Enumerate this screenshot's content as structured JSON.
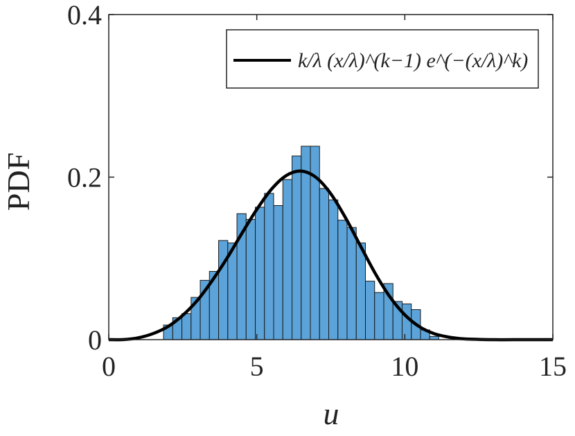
{
  "chart_data": {
    "type": "histogram",
    "xlabel": "u",
    "ylabel": "PDF",
    "xlim": [
      0,
      15
    ],
    "xticks": [
      0,
      5,
      10,
      15
    ],
    "ylim": [
      0,
      0.4
    ],
    "yticks": [
      0,
      0.2,
      0.4
    ],
    "color": "#5ba3d8",
    "bins": [
      1.85,
      2.16,
      2.47,
      2.78,
      3.09,
      3.4,
      3.71,
      4.02,
      4.33,
      4.64,
      4.95,
      5.26,
      5.57,
      5.88,
      6.19,
      6.5,
      6.81,
      7.12,
      7.43,
      7.74,
      8.05,
      8.36,
      8.67,
      8.98,
      9.29,
      9.6,
      9.91,
      10.22,
      10.53,
      10.84,
      11.15
    ],
    "values": [
      0.018,
      0.027,
      0.032,
      0.052,
      0.073,
      0.084,
      0.122,
      0.119,
      0.155,
      0.148,
      0.163,
      0.18,
      0.165,
      0.197,
      0.226,
      0.238,
      0.238,
      0.186,
      0.172,
      0.147,
      0.138,
      0.119,
      0.072,
      0.058,
      0.069,
      0.047,
      0.044,
      0.037,
      0.012,
      0.004
    ],
    "overlay": {
      "type": "line",
      "name": "k/λ (x/λ)^(k−1) e^(−(x/λ)^k)",
      "color": "#000000",
      "x": [
        0,
        0.5,
        1,
        1.5,
        2,
        2.5,
        3,
        3.5,
        4,
        4.5,
        5,
        5.5,
        6,
        6.5,
        7,
        7.5,
        8,
        8.5,
        9,
        9.5,
        10,
        10.5,
        11,
        11.5,
        12,
        13,
        14,
        15
      ],
      "values": [
        0,
        0.0001,
        0.0023,
        0.0075,
        0.0161,
        0.03,
        0.0487,
        0.073,
        0.1006,
        0.131,
        0.1602,
        0.1853,
        0.202,
        0.2074,
        0.1997,
        0.1795,
        0.1498,
        0.1155,
        0.0816,
        0.0525,
        0.0305,
        0.0158,
        0.0073,
        0.003,
        0.001,
        0,
        0,
        0
      ]
    },
    "box": true
  }
}
